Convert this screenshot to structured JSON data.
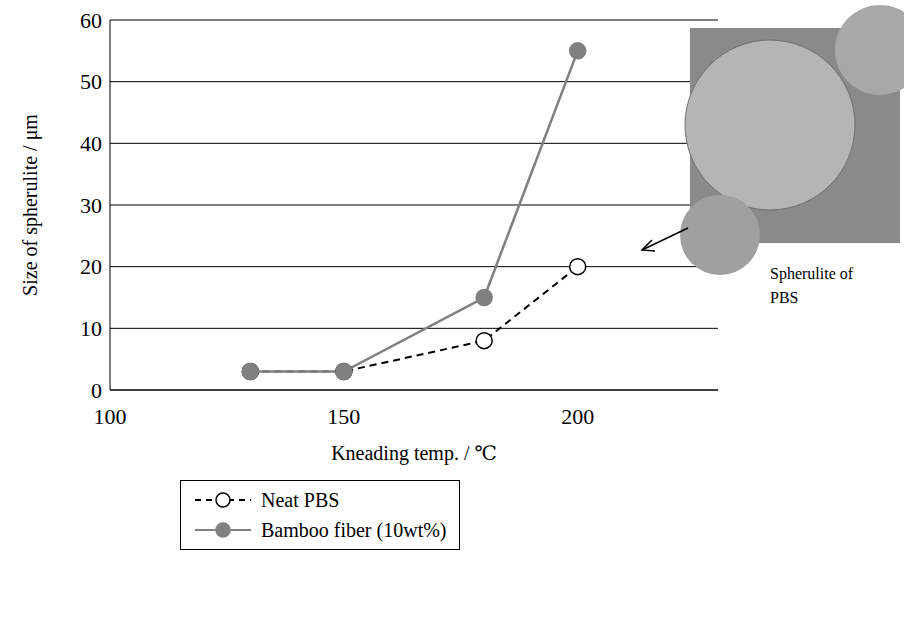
{
  "chart_data": {
    "type": "line",
    "x_label": "Kneading temp. / ℃",
    "y_label": "Size of spherulite / μm",
    "x": [
      130,
      150,
      180,
      200
    ],
    "series": [
      {
        "name": "Neat PBS",
        "color": "#000000",
        "line_style": "dashed",
        "marker": "open circle",
        "values": [
          3,
          3,
          8,
          20
        ]
      },
      {
        "name": "Bamboo fiber (10wt%)",
        "color": "#808080",
        "line_style": "solid",
        "marker": "circle",
        "values": [
          3,
          3,
          15,
          55
        ]
      }
    ],
    "xlim": [
      100,
      230
    ],
    "xticks": [
      100,
      150,
      200
    ],
    "ylim": [
      0,
      60
    ],
    "yticks": [
      0,
      10,
      20,
      30,
      40,
      50,
      60
    ],
    "grid": "y",
    "legend": "bottom",
    "annotations": [
      "Spherulite of PBS"
    ]
  }
}
